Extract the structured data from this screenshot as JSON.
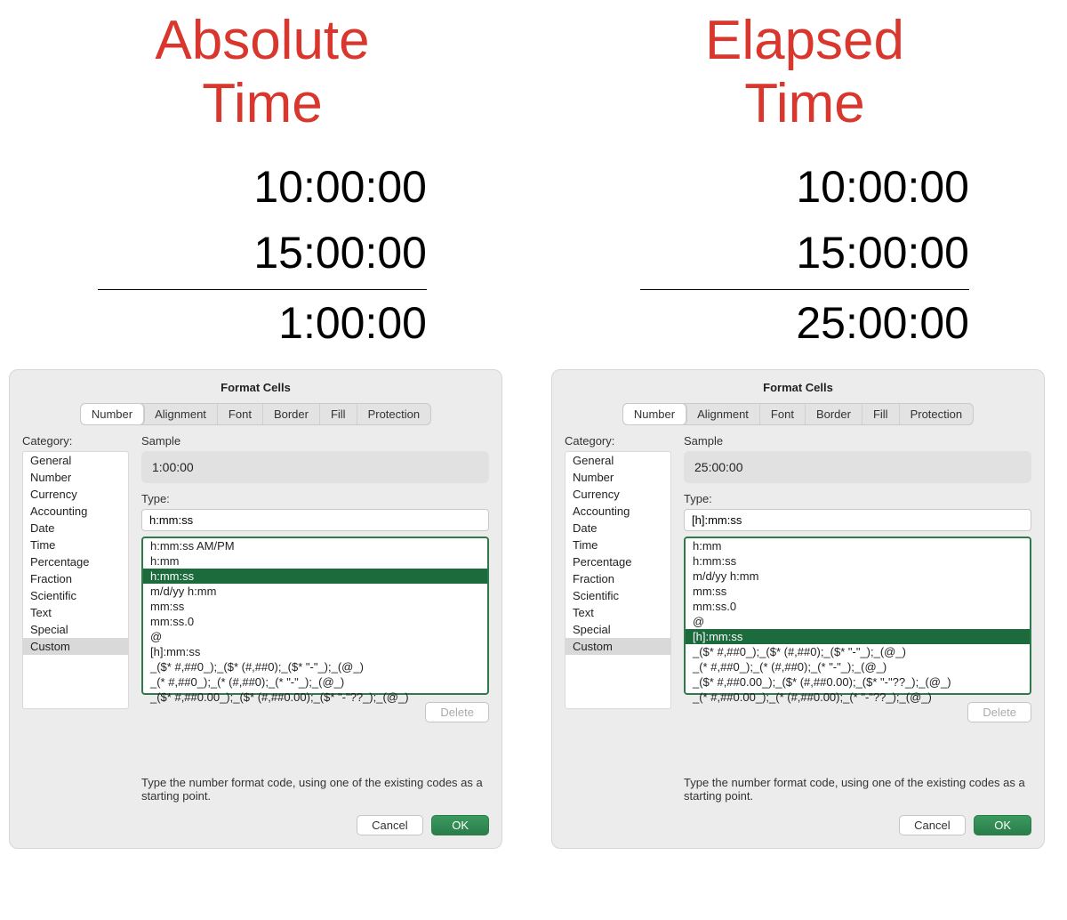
{
  "colors": {
    "headline": "#d9362d",
    "list_highlight_bg": "#1c6b3c",
    "list_highlight_fg": "#ffffff",
    "list_border": "#2f7a4a",
    "primary_btn": "#2f8a52",
    "dialog_bg": "#ececec"
  },
  "left": {
    "headline_l1": "Absolute",
    "headline_l2": "Time",
    "times": {
      "a": "10:00:00",
      "b": "15:00:00",
      "sum": "1:00:00"
    },
    "dialog": {
      "title": "Format Cells",
      "tabs": [
        "Number",
        "Alignment",
        "Font",
        "Border",
        "Fill",
        "Protection"
      ],
      "active_tab": "Number",
      "category_label": "Category:",
      "categories": [
        "General",
        "Number",
        "Currency",
        "Accounting",
        "Date",
        "Time",
        "Percentage",
        "Fraction",
        "Scientific",
        "Text",
        "Special",
        "Custom"
      ],
      "selected_category": "Custom",
      "sample_label": "Sample",
      "sample_value": "1:00:00",
      "type_label": "Type:",
      "type_value": "h:mm:ss",
      "type_list": [
        "h:mm:ss AM/PM",
        "h:mm",
        "h:mm:ss",
        "m/d/yy h:mm",
        "mm:ss",
        "mm:ss.0",
        "@",
        "[h]:mm:ss",
        "_($* #,##0_);_($* (#,##0);_($* \"-\"_);_(@_)",
        "_(* #,##0_);_(* (#,##0);_(* \"-\"_);_(@_)",
        "_($* #,##0.00_);_($* (#,##0.00);_($* \"-\"??_);_(@_)"
      ],
      "selected_type": "h:mm:ss",
      "delete_label": "Delete",
      "hint": "Type the number format code, using one of the existing codes as a starting point.",
      "cancel_label": "Cancel",
      "ok_label": "OK"
    }
  },
  "right": {
    "headline_l1": "Elapsed",
    "headline_l2": "Time",
    "times": {
      "a": "10:00:00",
      "b": "15:00:00",
      "sum": "25:00:00"
    },
    "dialog": {
      "title": "Format Cells",
      "tabs": [
        "Number",
        "Alignment",
        "Font",
        "Border",
        "Fill",
        "Protection"
      ],
      "active_tab": "Number",
      "category_label": "Category:",
      "categories": [
        "General",
        "Number",
        "Currency",
        "Accounting",
        "Date",
        "Time",
        "Percentage",
        "Fraction",
        "Scientific",
        "Text",
        "Special",
        "Custom"
      ],
      "selected_category": "Custom",
      "sample_label": "Sample",
      "sample_value": "25:00:00",
      "type_label": "Type:",
      "type_value": "[h]:mm:ss",
      "type_list": [
        "h:mm",
        "h:mm:ss",
        "m/d/yy h:mm",
        "mm:ss",
        "mm:ss.0",
        "@",
        "[h]:mm:ss",
        "_($* #,##0_);_($* (#,##0);_($* \"-\"_);_(@_)",
        "_(* #,##0_);_(* (#,##0);_(* \"-\"_);_(@_)",
        "_($* #,##0.00_);_($* (#,##0.00);_($* \"-\"??_);_(@_)",
        "_(* #,##0.00_);_(* (#,##0.00);_(* \"-\"??_);_(@_)"
      ],
      "selected_type": "[h]:mm:ss",
      "delete_label": "Delete",
      "hint": "Type the number format code, using one of the existing codes as a starting point.",
      "cancel_label": "Cancel",
      "ok_label": "OK"
    }
  }
}
